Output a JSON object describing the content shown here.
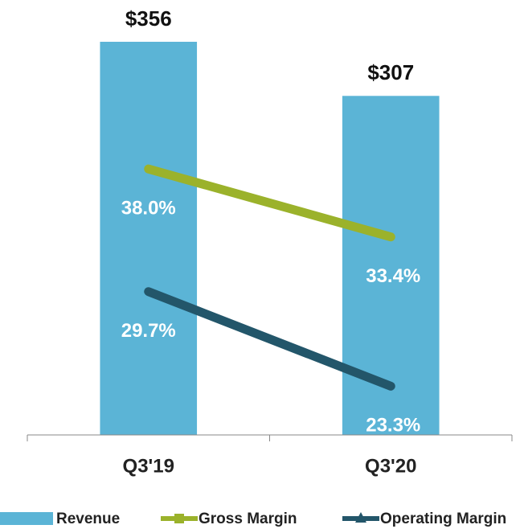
{
  "chart_data": {
    "type": "bar",
    "categories": [
      "Q3'19",
      "Q3'20"
    ],
    "ylim": [
      0,
      380
    ],
    "y2lim": [
      20,
      48.4
    ],
    "legend": "bottom",
    "series": [
      {
        "name": "Revenue",
        "type": "bar",
        "color": "#5bb4d6",
        "values": [
          356,
          307
        ],
        "value_labels": [
          "$356",
          "$307"
        ]
      },
      {
        "name": "Gross Margin",
        "type": "line",
        "axis": "y2",
        "marker": "square",
        "color": "#9bb22b",
        "values": [
          38.0,
          33.4
        ],
        "value_labels": [
          "38.0%",
          "33.4%"
        ]
      },
      {
        "name": "Operating Margin",
        "type": "line",
        "axis": "y2",
        "marker": "triangle",
        "color": "#23566a",
        "values": [
          29.7,
          23.3
        ],
        "value_labels": [
          "29.7%",
          "23.3%"
        ]
      }
    ]
  }
}
